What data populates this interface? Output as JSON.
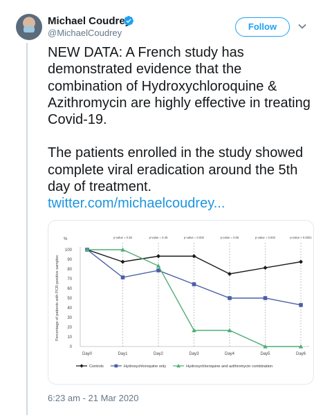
{
  "author": {
    "name": "Michael Coudrey",
    "handle": "@MichaelCoudrey",
    "verified_color": "#1da1f2"
  },
  "follow_label": "Follow",
  "tweet": {
    "para1": "NEW DATA: A French study has demonstrated evidence that the combination of Hydroxychloroquine & Azithromycin are highly effective in treating Covid-19.",
    "para2": "The patients enrolled in the study showed complete viral eradication around the 5th day of treatment.",
    "link": "twitter.com/michaelcoudrey..."
  },
  "timestamp": "6:23 am - 21 Mar 2020",
  "chart_data": {
    "type": "line",
    "ylabel": "Percentage of patients with PCR-positive samples",
    "ylabel_unit": "%",
    "ylim": [
      0,
      100
    ],
    "yticks": [
      0,
      10,
      20,
      30,
      40,
      50,
      60,
      70,
      80,
      90,
      100
    ],
    "categories": [
      "Day0",
      "Day1",
      "Day2",
      "Day3",
      "Day4",
      "Day5",
      "Day6"
    ],
    "pvalues": [
      "p-value = 0.38",
      "p-value = 0.45",
      "p-value = 0.002",
      "p-value = 0.05",
      "p-value = 0.002",
      "p-value < 0.0001"
    ],
    "legend_position": "bottom",
    "series": [
      {
        "name": "Controls",
        "color": "#1a1a1a",
        "marker": "diamond",
        "values": [
          100,
          87.5,
          93.3,
          93.3,
          75,
          81.3,
          87.5
        ]
      },
      {
        "name": "Hydroxychloroquine only",
        "color": "#4a5ea8",
        "marker": "square",
        "values": [
          100,
          71.4,
          78.6,
          64.3,
          50,
          50,
          42.9
        ]
      },
      {
        "name": "Hydroxychloroquine and azithromycin combination",
        "color": "#4fae78",
        "marker": "triangle",
        "values": [
          100,
          100,
          83.3,
          16.7,
          16.7,
          0,
          0
        ]
      }
    ]
  }
}
